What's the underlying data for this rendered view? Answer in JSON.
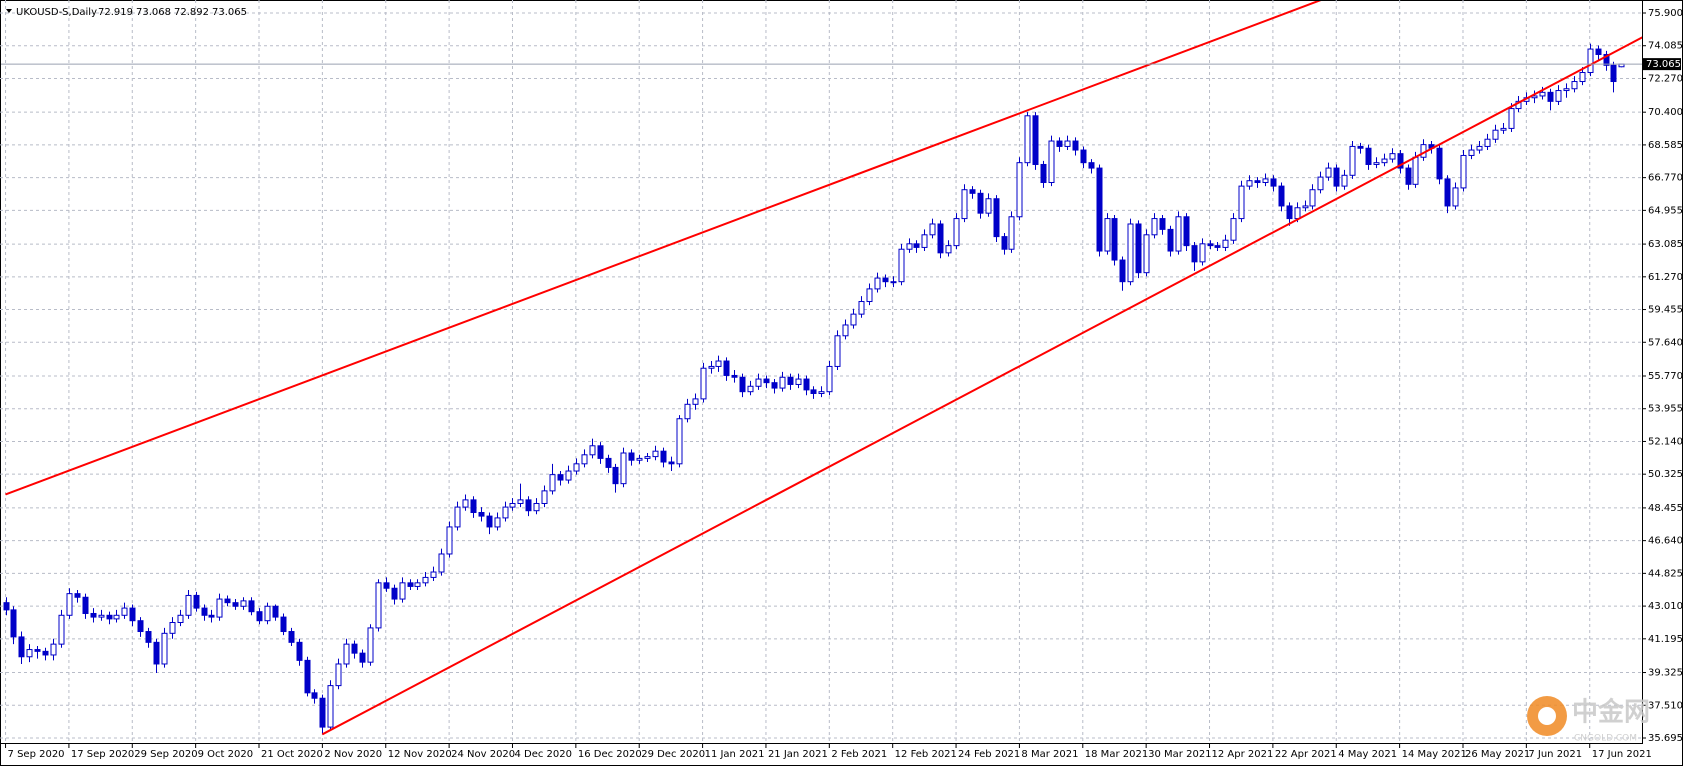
{
  "chart_data": {
    "type": "candlestick",
    "symbol": "UKOUSD-S,Daily",
    "color": "#0000c8",
    "grid": true,
    "xlim": [
      -0.7,
      206.6
    ],
    "ylim": [
      35.695,
      75.9
    ],
    "yticks": [
      {
        "value": 75.9,
        "label": "75.900"
      },
      {
        "value": 74.085,
        "label": "74.085"
      },
      {
        "value": 72.27,
        "label": "72.270"
      },
      {
        "value": 70.4,
        "label": "70.400"
      },
      {
        "value": 68.585,
        "label": "68.585"
      },
      {
        "value": 66.77,
        "label": "66.770"
      },
      {
        "value": 64.955,
        "label": "64.955"
      },
      {
        "value": 63.085,
        "label": "63.085"
      },
      {
        "value": 61.27,
        "label": "61.270"
      },
      {
        "value": 59.455,
        "label": "59.455"
      },
      {
        "value": 57.64,
        "label": "57.640"
      },
      {
        "value": 55.77,
        "label": "55.770"
      },
      {
        "value": 53.955,
        "label": "53.955"
      },
      {
        "value": 52.14,
        "label": "52.140"
      },
      {
        "value": 50.325,
        "label": "50.325"
      },
      {
        "value": 48.455,
        "label": "48.455"
      },
      {
        "value": 46.64,
        "label": "46.640"
      },
      {
        "value": 44.825,
        "label": "44.825"
      },
      {
        "value": 43.01,
        "label": "43.010"
      },
      {
        "value": 41.195,
        "label": "41.195"
      },
      {
        "value": 39.325,
        "label": "39.325"
      },
      {
        "value": 37.51,
        "label": "37.510"
      },
      {
        "value": 35.695,
        "label": "35.695"
      }
    ],
    "xticks": [
      {
        "value": 0,
        "label": "7 Sep 2020"
      },
      {
        "value": 8,
        "label": "17 Sep 2020"
      },
      {
        "value": 16,
        "label": "29 Sep 2020"
      },
      {
        "value": 24,
        "label": "9 Oct 2020"
      },
      {
        "value": 32,
        "label": "21 Oct 2020"
      },
      {
        "value": 40,
        "label": "2 Nov 2020"
      },
      {
        "value": 48,
        "label": "12 Nov 2020"
      },
      {
        "value": 56,
        "label": "24 Nov 2020"
      },
      {
        "value": 64,
        "label": "4 Dec 2020"
      },
      {
        "value": 72,
        "label": "16 Dec 2020"
      },
      {
        "value": 80,
        "label": "29 Dec 2020"
      },
      {
        "value": 88,
        "label": "11 Jan 2021"
      },
      {
        "value": 96,
        "label": "21 Jan 2021"
      },
      {
        "value": 104,
        "label": "2 Feb 2021"
      },
      {
        "value": 112,
        "label": "12 Feb 2021"
      },
      {
        "value": 120,
        "label": "24 Feb 2021"
      },
      {
        "value": 128,
        "label": "8 Mar 2021"
      },
      {
        "value": 136,
        "label": "18 Mar 2021"
      },
      {
        "value": 144,
        "label": "30 Mar 2021"
      },
      {
        "value": 152,
        "label": "12 Apr 2021"
      },
      {
        "value": 160,
        "label": "22 Apr 2021"
      },
      {
        "value": 168,
        "label": "4 May 2021"
      },
      {
        "value": 176,
        "label": "14 May 2021"
      },
      {
        "value": 184,
        "label": "26 May 2021"
      },
      {
        "value": 192,
        "label": "7 Jun 2021"
      },
      {
        "value": 200,
        "label": "17 Jun 2021"
      }
    ],
    "ohlc": [
      [
        43.2,
        43.5,
        42.5,
        42.8
      ],
      [
        42.8,
        43.0,
        40.9,
        41.3
      ],
      [
        41.3,
        41.6,
        39.8,
        40.2
      ],
      [
        40.2,
        40.9,
        39.9,
        40.6
      ],
      [
        40.6,
        40.8,
        40.1,
        40.5
      ],
      [
        40.5,
        40.7,
        40.0,
        40.3
      ],
      [
        40.3,
        41.2,
        40.0,
        40.9
      ],
      [
        40.9,
        42.8,
        40.7,
        42.5
      ],
      [
        42.5,
        44.0,
        42.3,
        43.7
      ],
      [
        43.7,
        43.9,
        43.2,
        43.5
      ],
      [
        43.5,
        43.7,
        42.3,
        42.6
      ],
      [
        42.6,
        42.9,
        42.1,
        42.4
      ],
      [
        42.4,
        42.8,
        42.2,
        42.5
      ],
      [
        42.5,
        42.7,
        42.0,
        42.3
      ],
      [
        42.3,
        42.8,
        42.1,
        42.5
      ],
      [
        42.5,
        43.2,
        42.3,
        42.9
      ],
      [
        42.9,
        43.1,
        41.9,
        42.2
      ],
      [
        42.2,
        42.4,
        41.3,
        41.6
      ],
      [
        41.6,
        41.8,
        40.7,
        41.0
      ],
      [
        41.0,
        41.2,
        39.3,
        39.8
      ],
      [
        39.8,
        41.8,
        39.6,
        41.5
      ],
      [
        41.5,
        42.4,
        41.2,
        42.1
      ],
      [
        42.1,
        42.8,
        41.9,
        42.5
      ],
      [
        42.5,
        43.9,
        42.3,
        43.6
      ],
      [
        43.6,
        43.8,
        42.7,
        42.9
      ],
      [
        42.9,
        43.1,
        42.2,
        42.5
      ],
      [
        42.5,
        42.8,
        42.1,
        42.4
      ],
      [
        42.4,
        43.7,
        42.2,
        43.4
      ],
      [
        43.4,
        43.6,
        43.0,
        43.2
      ],
      [
        43.2,
        43.4,
        42.8,
        43.0
      ],
      [
        43.0,
        43.5,
        42.8,
        43.3
      ],
      [
        43.3,
        43.5,
        42.5,
        42.7
      ],
      [
        42.7,
        42.9,
        42.0,
        42.2
      ],
      [
        42.2,
        43.2,
        42.0,
        43.0
      ],
      [
        43.0,
        43.1,
        42.2,
        42.4
      ],
      [
        42.4,
        42.6,
        41.4,
        41.6
      ],
      [
        41.6,
        41.8,
        40.8,
        41.0
      ],
      [
        41.0,
        41.2,
        39.7,
        40.0
      ],
      [
        40.0,
        40.2,
        38.0,
        38.2
      ],
      [
        38.2,
        38.4,
        37.6,
        37.9
      ],
      [
        37.9,
        38.1,
        35.9,
        36.3
      ],
      [
        36.3,
        38.9,
        36.1,
        38.6
      ],
      [
        38.6,
        40.1,
        38.4,
        39.8
      ],
      [
        39.8,
        41.2,
        39.6,
        40.9
      ],
      [
        40.9,
        41.1,
        40.1,
        40.4
      ],
      [
        40.4,
        40.6,
        39.6,
        39.9
      ],
      [
        39.9,
        42.0,
        39.7,
        41.8
      ],
      [
        41.8,
        44.5,
        41.6,
        44.3
      ],
      [
        44.3,
        44.6,
        43.8,
        44.0
      ],
      [
        44.0,
        44.2,
        43.1,
        43.4
      ],
      [
        43.4,
        44.6,
        43.2,
        44.3
      ],
      [
        44.3,
        44.5,
        43.9,
        44.1
      ],
      [
        44.1,
        44.5,
        43.9,
        44.3
      ],
      [
        44.3,
        44.9,
        44.1,
        44.6
      ],
      [
        44.6,
        45.2,
        44.4,
        44.9
      ],
      [
        44.9,
        46.2,
        44.7,
        45.9
      ],
      [
        45.9,
        47.7,
        45.7,
        47.4
      ],
      [
        47.4,
        48.8,
        47.2,
        48.5
      ],
      [
        48.5,
        49.2,
        48.3,
        48.9
      ],
      [
        48.9,
        49.1,
        47.9,
        48.2
      ],
      [
        48.2,
        48.5,
        47.7,
        48.0
      ],
      [
        48.0,
        48.2,
        47.0,
        47.4
      ],
      [
        47.4,
        48.2,
        47.2,
        47.9
      ],
      [
        47.9,
        48.8,
        47.7,
        48.5
      ],
      [
        48.5,
        49.0,
        48.3,
        48.7
      ],
      [
        48.7,
        49.8,
        48.5,
        48.9
      ],
      [
        48.9,
        49.1,
        48.0,
        48.3
      ],
      [
        48.3,
        49.0,
        48.1,
        48.7
      ],
      [
        48.7,
        49.7,
        48.5,
        49.4
      ],
      [
        49.4,
        50.9,
        49.2,
        50.3
      ],
      [
        50.3,
        50.5,
        49.7,
        50.0
      ],
      [
        50.0,
        50.8,
        49.8,
        50.5
      ],
      [
        50.5,
        51.2,
        50.3,
        50.9
      ],
      [
        50.9,
        51.7,
        50.7,
        51.4
      ],
      [
        51.4,
        52.3,
        51.2,
        51.9
      ],
      [
        51.9,
        52.1,
        50.9,
        51.2
      ],
      [
        51.2,
        51.4,
        50.4,
        50.7
      ],
      [
        50.7,
        50.9,
        49.3,
        49.8
      ],
      [
        49.8,
        51.8,
        49.6,
        51.5
      ],
      [
        51.5,
        51.7,
        50.8,
        51.1
      ],
      [
        51.1,
        51.4,
        50.9,
        51.2
      ],
      [
        51.2,
        51.5,
        51.0,
        51.3
      ],
      [
        51.3,
        51.9,
        51.1,
        51.6
      ],
      [
        51.6,
        51.8,
        50.7,
        51.0
      ],
      [
        51.0,
        51.3,
        50.5,
        50.9
      ],
      [
        50.9,
        53.6,
        50.7,
        53.4
      ],
      [
        53.4,
        54.5,
        53.2,
        54.2
      ],
      [
        54.2,
        54.8,
        53.9,
        54.5
      ],
      [
        54.5,
        56.5,
        54.3,
        56.2
      ],
      [
        56.2,
        56.6,
        55.9,
        56.3
      ],
      [
        56.3,
        56.9,
        56.0,
        56.6
      ],
      [
        56.6,
        56.8,
        55.5,
        55.8
      ],
      [
        55.8,
        56.1,
        55.4,
        55.7
      ],
      [
        55.7,
        55.9,
        54.6,
        54.9
      ],
      [
        54.9,
        55.5,
        54.7,
        55.2
      ],
      [
        55.2,
        55.9,
        55.0,
        55.6
      ],
      [
        55.6,
        55.8,
        55.1,
        55.4
      ],
      [
        55.4,
        55.6,
        54.8,
        55.1
      ],
      [
        55.1,
        56.0,
        54.9,
        55.7
      ],
      [
        55.7,
        55.9,
        55.0,
        55.3
      ],
      [
        55.3,
        55.9,
        55.1,
        55.6
      ],
      [
        55.6,
        55.8,
        54.7,
        55.0
      ],
      [
        55.0,
        55.2,
        54.5,
        54.8
      ],
      [
        54.8,
        55.2,
        54.6,
        54.9
      ],
      [
        54.9,
        56.6,
        54.7,
        56.3
      ],
      [
        56.3,
        58.3,
        56.1,
        58.0
      ],
      [
        58.0,
        58.9,
        57.8,
        58.6
      ],
      [
        58.6,
        59.5,
        58.4,
        59.2
      ],
      [
        59.2,
        60.2,
        59.0,
        59.9
      ],
      [
        59.9,
        60.9,
        59.7,
        60.6
      ],
      [
        60.6,
        61.5,
        60.4,
        61.2
      ],
      [
        61.2,
        61.4,
        60.7,
        61.0
      ],
      [
        61.0,
        61.3,
        60.7,
        61.0
      ],
      [
        61.0,
        63.1,
        60.8,
        62.8
      ],
      [
        62.8,
        63.4,
        62.6,
        63.1
      ],
      [
        63.1,
        63.3,
        62.6,
        62.9
      ],
      [
        62.9,
        63.9,
        62.7,
        63.6
      ],
      [
        63.6,
        64.5,
        63.4,
        64.2
      ],
      [
        64.2,
        64.4,
        62.3,
        62.6
      ],
      [
        62.6,
        63.3,
        62.4,
        63.0
      ],
      [
        63.0,
        64.8,
        62.8,
        64.5
      ],
      [
        64.5,
        66.4,
        64.3,
        66.1
      ],
      [
        66.1,
        66.3,
        65.6,
        65.9
      ],
      [
        65.9,
        66.1,
        64.5,
        64.8
      ],
      [
        64.8,
        65.9,
        64.6,
        65.6
      ],
      [
        65.6,
        65.8,
        63.2,
        63.5
      ],
      [
        63.5,
        63.7,
        62.5,
        62.8
      ],
      [
        62.8,
        64.9,
        62.6,
        64.6
      ],
      [
        64.6,
        67.9,
        64.4,
        67.6
      ],
      [
        67.6,
        70.4,
        67.4,
        70.2
      ],
      [
        70.2,
        70.4,
        67.2,
        67.5
      ],
      [
        67.5,
        67.7,
        66.2,
        66.5
      ],
      [
        66.5,
        69.1,
        66.3,
        68.8
      ],
      [
        68.8,
        69.0,
        68.2,
        68.5
      ],
      [
        68.5,
        69.1,
        68.3,
        68.8
      ],
      [
        68.8,
        69.0,
        68.0,
        68.3
      ],
      [
        68.3,
        68.5,
        67.3,
        67.6
      ],
      [
        67.6,
        67.8,
        67.0,
        67.3
      ],
      [
        67.3,
        67.5,
        62.4,
        62.7
      ],
      [
        62.7,
        64.8,
        62.5,
        64.5
      ],
      [
        64.5,
        64.7,
        61.9,
        62.2
      ],
      [
        62.2,
        62.4,
        60.5,
        61.0
      ],
      [
        61.0,
        64.5,
        60.8,
        64.2
      ],
      [
        64.2,
        64.4,
        61.2,
        61.5
      ],
      [
        61.5,
        63.9,
        61.3,
        63.6
      ],
      [
        63.6,
        64.8,
        63.4,
        64.5
      ],
      [
        64.5,
        64.7,
        63.6,
        63.9
      ],
      [
        63.9,
        64.1,
        62.4,
        62.7
      ],
      [
        62.7,
        64.9,
        62.5,
        64.6
      ],
      [
        64.6,
        64.8,
        62.7,
        63.0
      ],
      [
        63.0,
        63.2,
        61.6,
        62.1
      ],
      [
        62.1,
        63.4,
        61.9,
        63.1
      ],
      [
        63.1,
        63.3,
        62.8,
        63.0
      ],
      [
        63.0,
        63.2,
        62.7,
        62.9
      ],
      [
        62.9,
        63.6,
        62.7,
        63.3
      ],
      [
        63.3,
        64.8,
        63.1,
        64.5
      ],
      [
        64.5,
        66.6,
        64.3,
        66.3
      ],
      [
        66.3,
        66.9,
        66.1,
        66.6
      ],
      [
        66.6,
        66.8,
        66.2,
        66.5
      ],
      [
        66.5,
        67.0,
        66.3,
        66.7
      ],
      [
        66.7,
        66.9,
        66.0,
        66.3
      ],
      [
        66.3,
        66.5,
        64.9,
        65.2
      ],
      [
        65.2,
        65.4,
        64.1,
        64.5
      ],
      [
        64.5,
        65.4,
        64.3,
        65.1
      ],
      [
        65.1,
        65.5,
        64.9,
        65.2
      ],
      [
        65.2,
        66.4,
        65.0,
        66.1
      ],
      [
        66.1,
        67.1,
        65.9,
        66.8
      ],
      [
        66.8,
        67.6,
        66.6,
        67.3
      ],
      [
        67.3,
        67.5,
        66.0,
        66.3
      ],
      [
        66.3,
        67.2,
        66.1,
        66.9
      ],
      [
        66.9,
        68.8,
        66.7,
        68.5
      ],
      [
        68.5,
        68.7,
        68.1,
        68.4
      ],
      [
        68.4,
        68.6,
        67.2,
        67.5
      ],
      [
        67.5,
        67.9,
        67.3,
        67.6
      ],
      [
        67.6,
        68.1,
        67.4,
        67.8
      ],
      [
        67.8,
        68.4,
        67.6,
        68.1
      ],
      [
        68.1,
        68.3,
        67.0,
        67.3
      ],
      [
        67.3,
        67.5,
        66.1,
        66.4
      ],
      [
        66.4,
        68.2,
        66.2,
        67.9
      ],
      [
        67.9,
        68.9,
        67.7,
        68.6
      ],
      [
        68.6,
        68.8,
        68.1,
        68.4
      ],
      [
        68.4,
        68.6,
        66.4,
        66.7
      ],
      [
        66.7,
        66.9,
        64.8,
        65.2
      ],
      [
        65.2,
        66.5,
        65.0,
        66.2
      ],
      [
        66.2,
        68.3,
        66.0,
        68.0
      ],
      [
        68.0,
        68.6,
        67.8,
        68.3
      ],
      [
        68.3,
        68.8,
        68.1,
        68.5
      ],
      [
        68.5,
        69.2,
        68.3,
        68.9
      ],
      [
        68.9,
        69.7,
        68.7,
        69.4
      ],
      [
        69.4,
        69.8,
        69.2,
        69.5
      ],
      [
        69.5,
        70.9,
        69.3,
        70.6
      ],
      [
        70.6,
        71.3,
        70.4,
        71.0
      ],
      [
        71.0,
        71.5,
        70.8,
        71.2
      ],
      [
        71.2,
        71.6,
        70.9,
        71.3
      ],
      [
        71.3,
        71.8,
        71.1,
        71.5
      ],
      [
        71.5,
        71.7,
        70.5,
        71.0
      ],
      [
        71.0,
        71.9,
        70.8,
        71.6
      ],
      [
        71.6,
        72.0,
        71.2,
        71.7
      ],
      [
        71.7,
        72.4,
        71.5,
        72.1
      ],
      [
        72.1,
        72.9,
        71.9,
        72.6
      ],
      [
        72.6,
        74.2,
        72.4,
        73.9
      ],
      [
        73.9,
        74.1,
        73.3,
        73.6
      ],
      [
        73.6,
        73.8,
        72.7,
        73.0
      ],
      [
        73.0,
        73.2,
        71.5,
        72.1
      ],
      [
        72.919,
        73.068,
        72.892,
        73.065
      ]
    ],
    "trendlines": [
      {
        "color": "#ff0000",
        "points": [
          [
            0,
            49.2
          ],
          [
            129,
            70.5
          ]
        ]
      },
      {
        "color": "#ff0000",
        "points": [
          [
            40,
            35.9
          ],
          [
            206,
            74.4
          ]
        ]
      }
    ],
    "price_line_color": "#9aa0b0",
    "watermark": {
      "name": "中金网",
      "site": "CNGOLD.COM"
    }
  }
}
